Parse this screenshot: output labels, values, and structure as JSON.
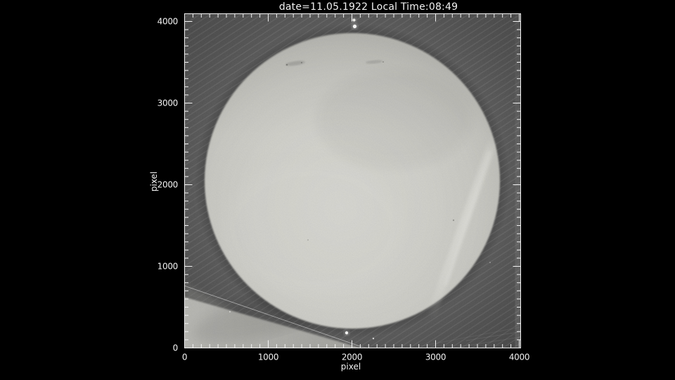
{
  "page": {
    "background": "#000000"
  },
  "chart_data": {
    "type": "heatmap",
    "title": "date=11.05.1922 Local Time:08:49",
    "xlabel": "pixel",
    "ylabel": "pixel",
    "xlim": [
      0,
      4000
    ],
    "ylim": [
      0,
      4000
    ],
    "x_ticks": [
      "0",
      "1000",
      "2000",
      "3000",
      "4000"
    ],
    "y_ticks": [
      "0",
      "1000",
      "2000",
      "3000",
      "4000"
    ],
    "major_tick_interval": 1000,
    "minor_tick_interval": 100,
    "grid": false,
    "legend": "none",
    "frame": "full box with inward-pointing ticks on all four sides",
    "content": {
      "description": "Grayscale scan of a historical photographic plate showing the full solar disk, plotted in detector pixel coordinates",
      "date_shown": "11.05.1922",
      "local_time_shown": "08:49",
      "solar_disk": {
        "center_x": 2005,
        "center_y": 2045,
        "radius": 1765,
        "mean_gray": "#cecec8"
      },
      "background_gray": "#3e3e3e",
      "artifacts": [
        {
          "name": "bright-double-speck-north",
          "x": 2025,
          "y": 3990,
          "note": "two small white dots just above the north limb"
        },
        {
          "name": "bright-speck-south",
          "x": 1940,
          "y": 185,
          "note": "bright white dot below the south limb"
        },
        {
          "name": "diagonal-bright-band",
          "from": [
            3700,
            2570
          ],
          "to": [
            2940,
            370
          ],
          "note": "light diagonal band crossing the south-east limb"
        },
        {
          "name": "bright-plate-edge-wedge",
          "from": [
            0,
            620
          ],
          "to": [
            2140,
            0
          ],
          "note": "light wedge-shaped plate-edge region in lower-left corner"
        },
        {
          "name": "thin-scratch-line",
          "from": [
            0,
            760
          ],
          "to": [
            2100,
            20
          ],
          "note": "thin bright scratch running diagonally through lower-left region"
        },
        {
          "name": "faint-sunspot-smudges",
          "x": 1350,
          "y": 3480,
          "note": "faint dark smudges near the northern limb"
        }
      ]
    }
  },
  "colors": {
    "page_background": "#000000",
    "plot_background": "#3e3e3e",
    "disk": "#cecec8",
    "axis": "#f2f2f2",
    "text": "#f2f2f2"
  }
}
